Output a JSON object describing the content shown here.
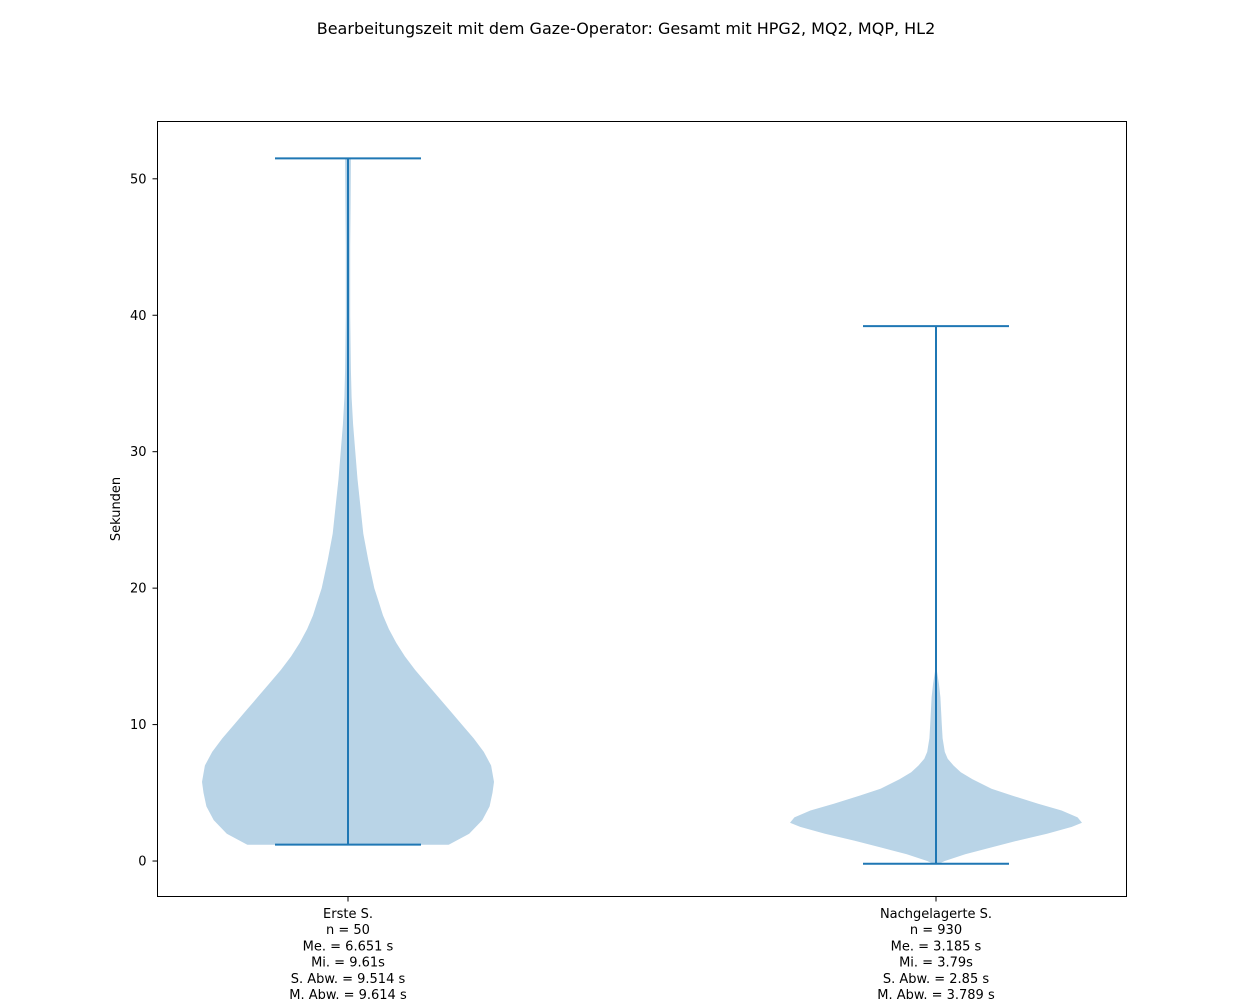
{
  "chart_data": {
    "type": "violin",
    "title": "Bearbeitungszeit mit dem Gaze-Operator: Gesamt mit HPG2, MQ2, MQP, HL2",
    "ylabel": "Sekunden",
    "xlabel": "",
    "ylim": [
      -2.6,
      54.2
    ],
    "yticks": [
      0,
      10,
      20,
      30,
      40,
      50
    ],
    "grid": false,
    "colors": {
      "body": "#b9d4e7",
      "lines": "#1f77b4"
    },
    "series": [
      {
        "label_lines": [
          "Erste S.",
          "n = 50",
          "Me. = 6.651 s",
          "Mi. = 9.61s",
          "S. Abw. = 9.514 s",
          "M. Abw. = 9.614 s"
        ],
        "min": 1.2,
        "max": 51.5,
        "density": [
          [
            1.2,
            0.69
          ],
          [
            2.0,
            0.83
          ],
          [
            3.0,
            0.92
          ],
          [
            4.0,
            0.97
          ],
          [
            5.0,
            0.99
          ],
          [
            5.8,
            1.0
          ],
          [
            7.0,
            0.98
          ],
          [
            8.0,
            0.93
          ],
          [
            9.0,
            0.86
          ],
          [
            10.0,
            0.78
          ],
          [
            11.0,
            0.7
          ],
          [
            12.0,
            0.62
          ],
          [
            13.0,
            0.54
          ],
          [
            14.0,
            0.46
          ],
          [
            15.0,
            0.39
          ],
          [
            16.0,
            0.33
          ],
          [
            17.0,
            0.28
          ],
          [
            18.0,
            0.24
          ],
          [
            19.0,
            0.21
          ],
          [
            20.0,
            0.18
          ],
          [
            22.0,
            0.14
          ],
          [
            24.0,
            0.105
          ],
          [
            26.0,
            0.085
          ],
          [
            28.0,
            0.065
          ],
          [
            30.0,
            0.05
          ],
          [
            32.0,
            0.035
          ],
          [
            34.0,
            0.025
          ],
          [
            36.0,
            0.02
          ],
          [
            40.0,
            0.015
          ],
          [
            45.0,
            0.015
          ],
          [
            48.0,
            0.018
          ],
          [
            51.5,
            0.02
          ]
        ]
      },
      {
        "label_lines": [
          "Nachgelagerte S.",
          "n = 930",
          "Me. = 3.185 s",
          "Mi. = 3.79s",
          "S. Abw. = 2.85 s",
          "M. Abw. = 3.789 s"
        ],
        "min": -0.2,
        "max": 39.2,
        "density": [
          [
            -0.2,
            0.02
          ],
          [
            0.0,
            0.06
          ],
          [
            0.5,
            0.2
          ],
          [
            1.0,
            0.38
          ],
          [
            1.5,
            0.56
          ],
          [
            2.0,
            0.76
          ],
          [
            2.5,
            0.93
          ],
          [
            2.8,
            1.0
          ],
          [
            3.2,
            0.97
          ],
          [
            3.7,
            0.86
          ],
          [
            4.2,
            0.7
          ],
          [
            4.8,
            0.52
          ],
          [
            5.3,
            0.38
          ],
          [
            6.0,
            0.25
          ],
          [
            6.5,
            0.17
          ],
          [
            7.0,
            0.12
          ],
          [
            7.5,
            0.08
          ],
          [
            8.0,
            0.06
          ],
          [
            9.0,
            0.045
          ],
          [
            10.0,
            0.04
          ],
          [
            11.0,
            0.035
          ],
          [
            12.0,
            0.03
          ],
          [
            13.0,
            0.02
          ],
          [
            13.8,
            0.008
          ],
          [
            14.5,
            0.0
          ],
          [
            39.2,
            0.0
          ]
        ]
      }
    ]
  }
}
